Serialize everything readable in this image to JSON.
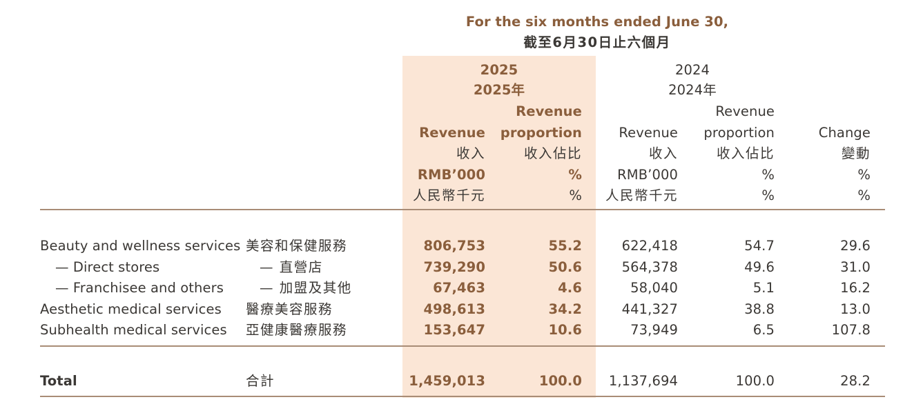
{
  "header": {
    "period_en": "For the six months ended June 30,",
    "period_zh": "截至6月30日止六個月",
    "year_2025": "2025",
    "year_2025_zh": "2025年",
    "year_2024": "2024",
    "year_2024_zh": "2024年"
  },
  "columns": {
    "rev_2025": {
      "en": "Revenue",
      "zh": "收入",
      "unit_en": "RMB’000",
      "unit_zh": "人民幣千元"
    },
    "prop_2025": {
      "en1": "Revenue",
      "en2": "proportion",
      "zh": "收入佔比",
      "unit_en": "%",
      "unit_zh": "%"
    },
    "rev_2024": {
      "en": "Revenue",
      "zh": "收入",
      "unit_en": "RMB’000",
      "unit_zh": "人民幣千元"
    },
    "prop_2024": {
      "en1": "Revenue",
      "en2": "proportion",
      "zh": "收入佔比",
      "unit_en": "%",
      "unit_zh": "%"
    },
    "change": {
      "en": "Change",
      "zh": "變動",
      "unit_en": "%",
      "unit_zh": "%"
    }
  },
  "rows": [
    {
      "label_en": "Beauty and wellness services",
      "label_zh": "美容和保健服務",
      "rev_2025": "806,753",
      "prop_2025": "55.2",
      "rev_2024": "622,418",
      "prop_2024": "54.7",
      "change": "29.6"
    },
    {
      "label_en": "— Direct stores",
      "label_zh": "— 直營店",
      "rev_2025": "739,290",
      "prop_2025": "50.6",
      "rev_2024": "564,378",
      "prop_2024": "49.6",
      "change": "31.0"
    },
    {
      "label_en": "— Franchisee and others",
      "label_zh": "— 加盟及其他",
      "rev_2025": "67,463",
      "prop_2025": "4.6",
      "rev_2024": "58,040",
      "prop_2024": "5.1",
      "change": "16.2"
    },
    {
      "label_en": "Aesthetic medical services",
      "label_zh": "醫療美容服務",
      "rev_2025": "498,613",
      "prop_2025": "34.2",
      "rev_2024": "441,327",
      "prop_2024": "38.8",
      "change": "13.0"
    },
    {
      "label_en": "Subhealth medical services",
      "label_zh": "亞健康醫療服務",
      "rev_2025": "153,647",
      "prop_2025": "10.6",
      "rev_2024": "73,949",
      "prop_2024": "6.5",
      "change": "107.8"
    }
  ],
  "total": {
    "label_en": "Total",
    "label_zh": "合計",
    "rev_2025": "1,459,013",
    "prop_2025": "100.0",
    "rev_2024": "1,137,694",
    "prop_2024": "100.0",
    "change": "28.2"
  }
}
